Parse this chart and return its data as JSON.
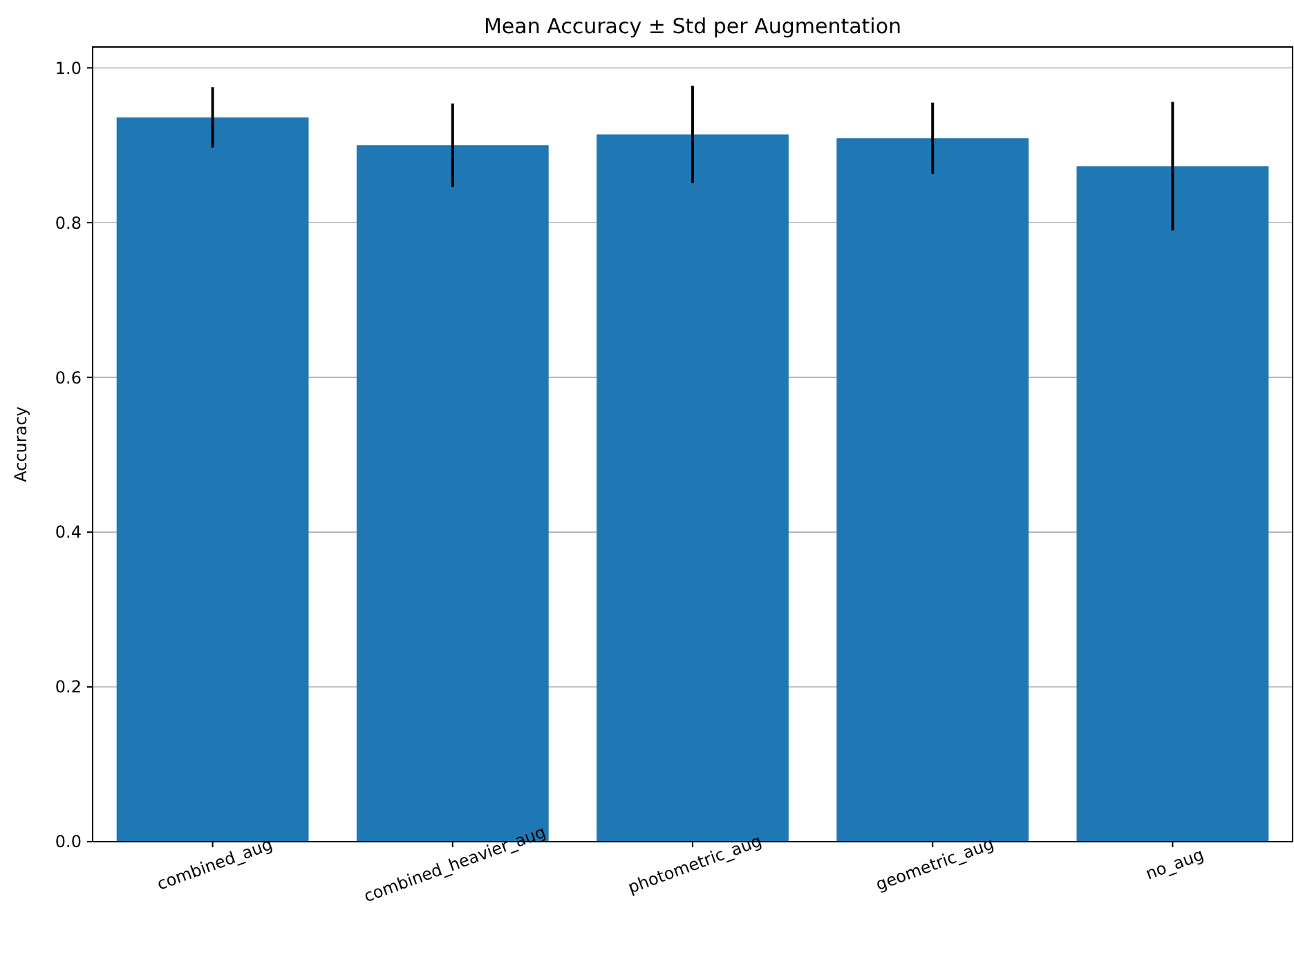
{
  "chart_data": {
    "type": "bar",
    "title": "Mean Accuracy ± Std per Augmentation",
    "ylabel": "Accuracy",
    "categories": [
      "combined_aug",
      "combined_heavier_aug",
      "photometric_aug",
      "geometric_aug",
      "no_aug"
    ],
    "values": [
      0.936,
      0.9,
      0.914,
      0.909,
      0.873
    ],
    "errors": [
      0.039,
      0.054,
      0.063,
      0.046,
      0.083
    ],
    "color": "#1f77b4",
    "ylim": [
      0,
      1.027
    ],
    "yticks": [
      {
        "value": 0,
        "label": "0.0"
      },
      {
        "value": 0.2,
        "label": "0.2"
      },
      {
        "value": 0.4,
        "label": "0.4"
      },
      {
        "value": 0.6,
        "label": "0.6"
      },
      {
        "value": 0.8,
        "label": "0.8"
      },
      {
        "value": 1,
        "label": "1.0"
      }
    ],
    "grid": "y"
  }
}
